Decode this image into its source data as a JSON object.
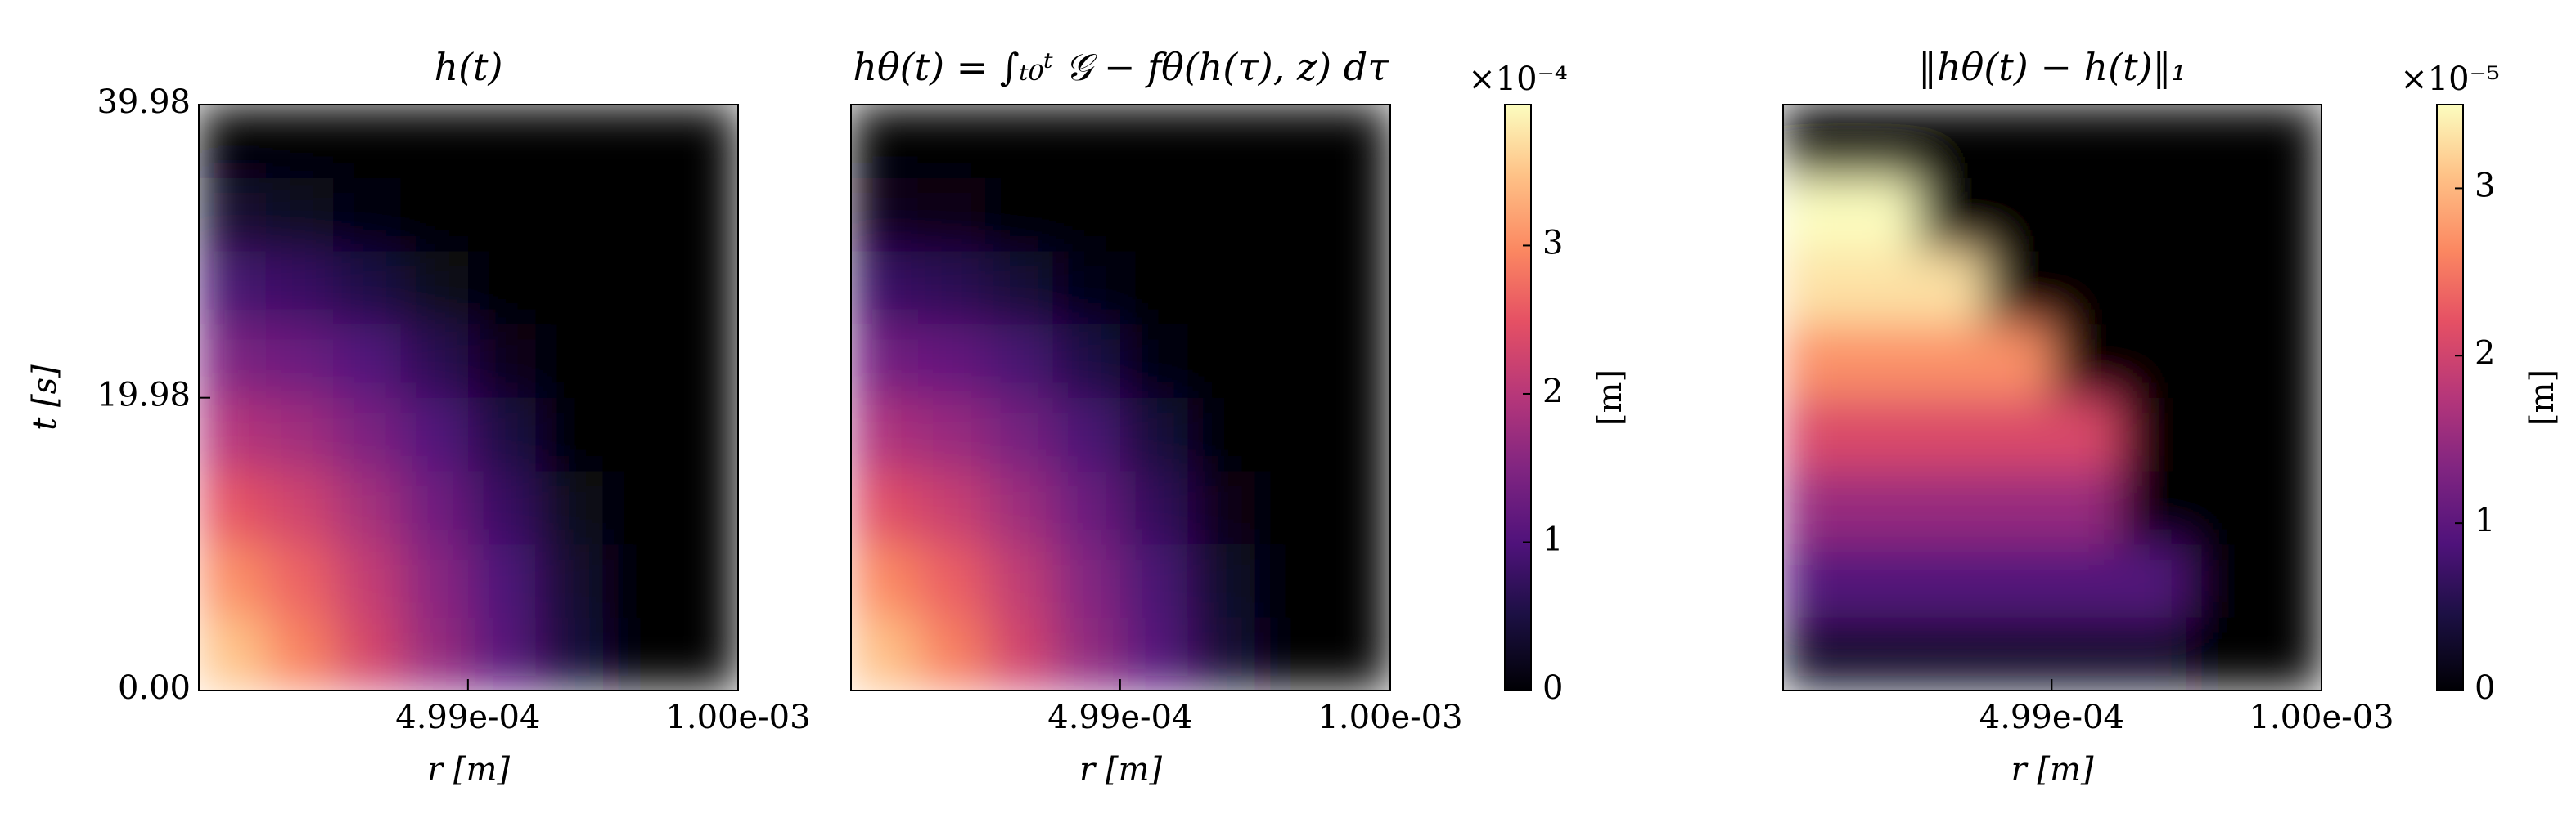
{
  "chart_data": [
    {
      "type": "heatmap",
      "title": "h(t)",
      "xlabel": "r [m]",
      "ylabel": "t [s]",
      "xlim": [
        0,
        0.001
      ],
      "ylim": [
        0,
        39.98
      ],
      "xticks": [
        {
          "value": 0.000499,
          "label": "4.99e-04"
        },
        {
          "value": 0.001,
          "label": "1.00e-03"
        }
      ],
      "yticks": [
        {
          "value": 0,
          "label": "0.00"
        },
        {
          "value": 19.98,
          "label": "19.98"
        },
        {
          "value": 39.98,
          "label": "39.98"
        }
      ],
      "clim": [
        0,
        3.95
      ],
      "x": [
        6.25e-05,
        0.0001875,
        0.0003125,
        0.0004375,
        0.0005625,
        0.0006875,
        0.0008125,
        0.0009375
      ],
      "y": [
        2.5,
        7.5,
        12.5,
        17.5,
        22.5,
        27.5,
        32.5,
        37.5
      ],
      "z": [
        [
          3.49,
          2.93,
          2.32,
          1.7,
          1.08,
          0.46,
          0,
          0
        ],
        [
          3.03,
          2.66,
          2.14,
          1.57,
          0.98,
          0.37,
          0,
          0
        ],
        [
          2.51,
          2.25,
          1.83,
          1.33,
          0.78,
          0.21,
          0,
          0
        ],
        [
          1.98,
          1.79,
          1.45,
          1.01,
          0.51,
          0,
          0,
          0
        ],
        [
          1.44,
          1.29,
          1.01,
          0.63,
          0.18,
          0,
          0,
          0
        ],
        [
          0.9,
          0.78,
          0.54,
          0.21,
          0,
          0,
          0,
          0
        ],
        [
          0.36,
          0.26,
          0.05,
          0,
          0,
          0,
          0,
          0
        ],
        [
          0,
          0,
          0,
          0,
          0,
          0,
          0,
          0
        ]
      ]
    },
    {
      "type": "heatmap",
      "title": "hθ(t) = ∫ₜ₀ᵗ 𝒢 − fθ(h(τ), z) dτ",
      "xlabel": "r [m]",
      "xlim": [
        0,
        0.001
      ],
      "ylim": [
        0,
        39.98
      ],
      "xticks": [
        {
          "value": 0.000499,
          "label": "4.99e-04"
        },
        {
          "value": 0.001,
          "label": "1.00e-03"
        }
      ],
      "clim": [
        0,
        3.95
      ],
      "colorbar": {
        "label": "[m]",
        "offset_label": "×10⁻⁴",
        "ticks": [
          0,
          1,
          2,
          3
        ]
      },
      "x": [
        6.25e-05,
        0.0001875,
        0.0003125,
        0.0004375,
        0.0005625,
        0.0006875,
        0.0008125,
        0.0009375
      ],
      "y": [
        2.5,
        7.5,
        12.5,
        17.5,
        22.5,
        27.5,
        32.5,
        37.5
      ],
      "z": [
        [
          3.45,
          2.9,
          2.28,
          1.66,
          1.04,
          0.42,
          0,
          0
        ],
        [
          2.98,
          2.61,
          2.09,
          1.52,
          0.93,
          0.32,
          0,
          0
        ],
        [
          2.44,
          2.18,
          1.76,
          1.26,
          0.71,
          0.15,
          0,
          0
        ],
        [
          1.9,
          1.71,
          1.37,
          0.93,
          0.43,
          0,
          0,
          0
        ],
        [
          1.34,
          1.19,
          0.91,
          0.53,
          0.1,
          0,
          0,
          0
        ],
        [
          0.78,
          0.66,
          0.42,
          0.11,
          0,
          0,
          0,
          0
        ],
        [
          0.2,
          0.12,
          0,
          0,
          0,
          0,
          0,
          0
        ],
        [
          0,
          0,
          0,
          0,
          0,
          0,
          0,
          0
        ]
      ]
    },
    {
      "type": "heatmap",
      "title": "‖hθ(t) − h(t)‖₁",
      "xlabel": "r [m]",
      "xlim": [
        0,
        0.001
      ],
      "ylim": [
        0,
        39.98
      ],
      "xticks": [
        {
          "value": 0.000499,
          "label": "4.99e-04"
        },
        {
          "value": 0.001,
          "label": "1.00e-03"
        }
      ],
      "clim": [
        0,
        3.5
      ],
      "colorbar": {
        "label": "[m]",
        "offset_label": "×10⁻⁵",
        "ticks": [
          0,
          1,
          2,
          3
        ]
      },
      "x": [
        6.25e-05,
        0.0001875,
        0.0003125,
        0.0004375,
        0.0005625,
        0.0006875,
        0.0008125,
        0.0009375
      ],
      "y": [
        2.5,
        7.5,
        12.5,
        17.5,
        22.5,
        27.5,
        32.5,
        37.5
      ],
      "z": [
        [
          0.3,
          0.3,
          0.3,
          0.3,
          0.3,
          0.3,
          0,
          0
        ],
        [
          0.9,
          0.9,
          0.9,
          0.9,
          0.9,
          0.9,
          0,
          0
        ],
        [
          1.5,
          1.5,
          1.5,
          1.5,
          1.5,
          0,
          0,
          0
        ],
        [
          2.1,
          2.1,
          2.1,
          2.1,
          2.1,
          0,
          0,
          0
        ],
        [
          2.7,
          2.7,
          2.7,
          2.7,
          0,
          0,
          0,
          0
        ],
        [
          3.3,
          3.3,
          3.3,
          0,
          0,
          0,
          0,
          0
        ],
        [
          3.5,
          3.5,
          0,
          0,
          0,
          0,
          0,
          0
        ],
        [
          0,
          0,
          0,
          0,
          0,
          0,
          0,
          0
        ]
      ]
    }
  ]
}
